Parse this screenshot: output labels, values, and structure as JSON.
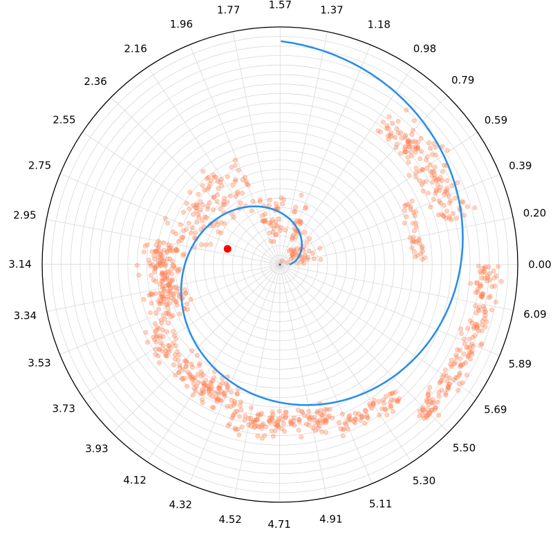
{
  "chart_data": {
    "type": "scatter",
    "projection": "polar",
    "title": "",
    "grid": true,
    "angle_ticks": [
      "0.00",
      "0.20",
      "0.39",
      "0.59",
      "0.79",
      "0.98",
      "1.18",
      "1.37",
      "1.57",
      "1.77",
      "1.96",
      "2.16",
      "2.36",
      "2.55",
      "2.75",
      "2.95",
      "3.14",
      "3.34",
      "3.53",
      "3.73",
      "3.93",
      "4.12",
      "4.32",
      "4.52",
      "4.71",
      "4.91",
      "5.11",
      "5.30",
      "5.50",
      "5.69",
      "5.89",
      "6.09"
    ],
    "rlim": [
      0,
      1.0
    ],
    "radial_grid_count": 25,
    "spiral": {
      "color": "#2a8ee8",
      "theta_start": 0.0,
      "theta_end": 7.85,
      "r_start": 0.04,
      "r_end": 0.94,
      "points": 160
    },
    "scatter_clusters": {
      "color": "#ff7f50",
      "alpha": 0.35,
      "seed": 7,
      "clusters": [
        {
          "theta_from": 0.05,
          "theta_to": 1.05,
          "r_center": 0.1,
          "r_spread": 0.12,
          "count": 40
        },
        {
          "theta_from": 1.05,
          "theta_to": 1.95,
          "r_center": 0.2,
          "r_spread": 0.14,
          "count": 60
        },
        {
          "theta_from": 1.95,
          "theta_to": 2.95,
          "r_center": 0.4,
          "r_spread": 0.16,
          "count": 110
        },
        {
          "theta_from": 2.95,
          "theta_to": 3.6,
          "r_center": 0.49,
          "r_spread": 0.12,
          "count": 170
        },
        {
          "theta_from": 3.6,
          "theta_to": 4.4,
          "r_center": 0.6,
          "r_spread": 0.1,
          "count": 150
        },
        {
          "theta_from": 4.4,
          "theta_to": 5.05,
          "r_center": 0.67,
          "r_spread": 0.09,
          "count": 130
        },
        {
          "theta_from": 5.05,
          "theta_to": 5.45,
          "r_center": 0.73,
          "r_spread": 0.07,
          "count": 60
        },
        {
          "theta_from": 5.45,
          "theta_to": 6.28,
          "r_center": 0.87,
          "r_spread": 0.08,
          "count": 170
        },
        {
          "theta_from": 0.02,
          "theta_to": 0.45,
          "r_center": 0.59,
          "r_spread": 0.05,
          "count": 35
        },
        {
          "theta_from": 0.25,
          "theta_to": 0.95,
          "r_center": 0.75,
          "r_spread": 0.12,
          "count": 140
        }
      ]
    },
    "marker_point": {
      "theta": 2.85,
      "r": 0.23,
      "color": "#ff0000"
    }
  }
}
